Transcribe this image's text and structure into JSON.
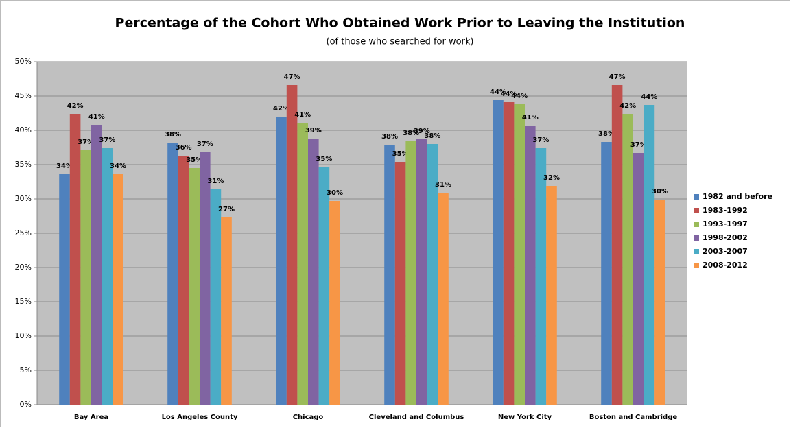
{
  "chart_data": {
    "type": "bar",
    "title": "Percentage of the Cohort Who Obtained Work Prior to Leaving the Institution",
    "subtitle": "(of those who searched for work)",
    "categories": [
      "Bay Area",
      "Los Angeles County",
      "Chicago",
      "Cleveland and Columbus",
      "New York City",
      "Boston and Cambridge"
    ],
    "series": [
      {
        "name": "1982 and before",
        "color": "#4f81bd",
        "values": [
          33.6,
          38.2,
          42.0,
          37.9,
          44.4,
          38.3
        ],
        "value_labels": [
          "34%",
          "38%",
          "42%",
          "38%",
          "44%",
          "38%"
        ]
      },
      {
        "name": "1983-1992",
        "color": "#c0504d",
        "values": [
          42.4,
          36.3,
          46.6,
          35.4,
          44.1,
          46.6
        ],
        "value_labels": [
          "42%",
          "36%",
          "47%",
          "35%",
          "44%",
          "47%"
        ]
      },
      {
        "name": "1993-1997",
        "color": "#9bbb59",
        "values": [
          37.1,
          34.5,
          41.1,
          38.4,
          43.8,
          42.4
        ],
        "value_labels": [
          "37%",
          "35%",
          "41%",
          "38%",
          "44%",
          "42%"
        ]
      },
      {
        "name": "1998-2002",
        "color": "#8064a2",
        "values": [
          40.8,
          36.8,
          38.8,
          38.7,
          40.7,
          36.7
        ],
        "value_labels": [
          "41%",
          "37%",
          "39%",
          "39%",
          "41%",
          "37%"
        ]
      },
      {
        "name": "2003-2007",
        "color": "#4bacc6",
        "values": [
          37.4,
          31.4,
          34.6,
          38.0,
          37.4,
          43.7
        ],
        "value_labels": [
          "37%",
          "31%",
          "35%",
          "38%",
          "37%",
          "44%"
        ]
      },
      {
        "name": "2008-2012",
        "color": "#f79646",
        "values": [
          33.6,
          27.3,
          29.7,
          30.9,
          31.9,
          29.9
        ],
        "value_labels": [
          "34%",
          "27%",
          "30%",
          "31%",
          "32%",
          "30%"
        ]
      }
    ],
    "ylim": [
      0,
      50
    ],
    "yticks": [
      {
        "value": 0,
        "label": "0%"
      },
      {
        "value": 5,
        "label": "5%"
      },
      {
        "value": 10,
        "label": "10%"
      },
      {
        "value": 15,
        "label": "15%"
      },
      {
        "value": 20,
        "label": "20%"
      },
      {
        "value": 25,
        "label": "25%"
      },
      {
        "value": 30,
        "label": "30%"
      },
      {
        "value": 35,
        "label": "35%"
      },
      {
        "value": 40,
        "label": "40%"
      },
      {
        "value": 45,
        "label": "45%"
      },
      {
        "value": 50,
        "label": "50%"
      }
    ],
    "grid": true,
    "legend": "right"
  }
}
